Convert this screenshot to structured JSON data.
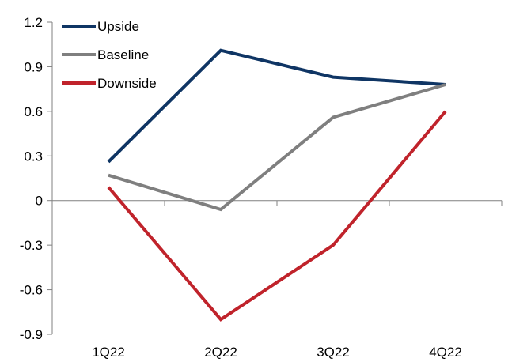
{
  "chart_data": {
    "type": "line",
    "categories": [
      "1Q22",
      "2Q22",
      "3Q22",
      "4Q22"
    ],
    "series": [
      {
        "name": "Upside",
        "color": "#0f3564",
        "values": [
          0.26,
          1.01,
          0.83,
          0.78
        ]
      },
      {
        "name": "Baseline",
        "color": "#7f7f7f",
        "values": [
          0.17,
          -0.06,
          0.56,
          0.78
        ]
      },
      {
        "name": "Downside",
        "color": "#c0232b",
        "values": [
          0.09,
          -0.8,
          -0.3,
          0.6
        ]
      }
    ],
    "y_ticks": [
      "1.2",
      "0.9",
      "0.6",
      "0.3",
      "0",
      "-0.3",
      "-0.6",
      "-0.9"
    ],
    "y_tick_values": [
      1.2,
      0.9,
      0.6,
      0.3,
      0,
      -0.3,
      -0.6,
      -0.9
    ],
    "ylim": [
      -0.9,
      1.2
    ],
    "title": "",
    "xlabel": "",
    "ylabel": "",
    "grid": false,
    "legend_position": "top-left"
  }
}
